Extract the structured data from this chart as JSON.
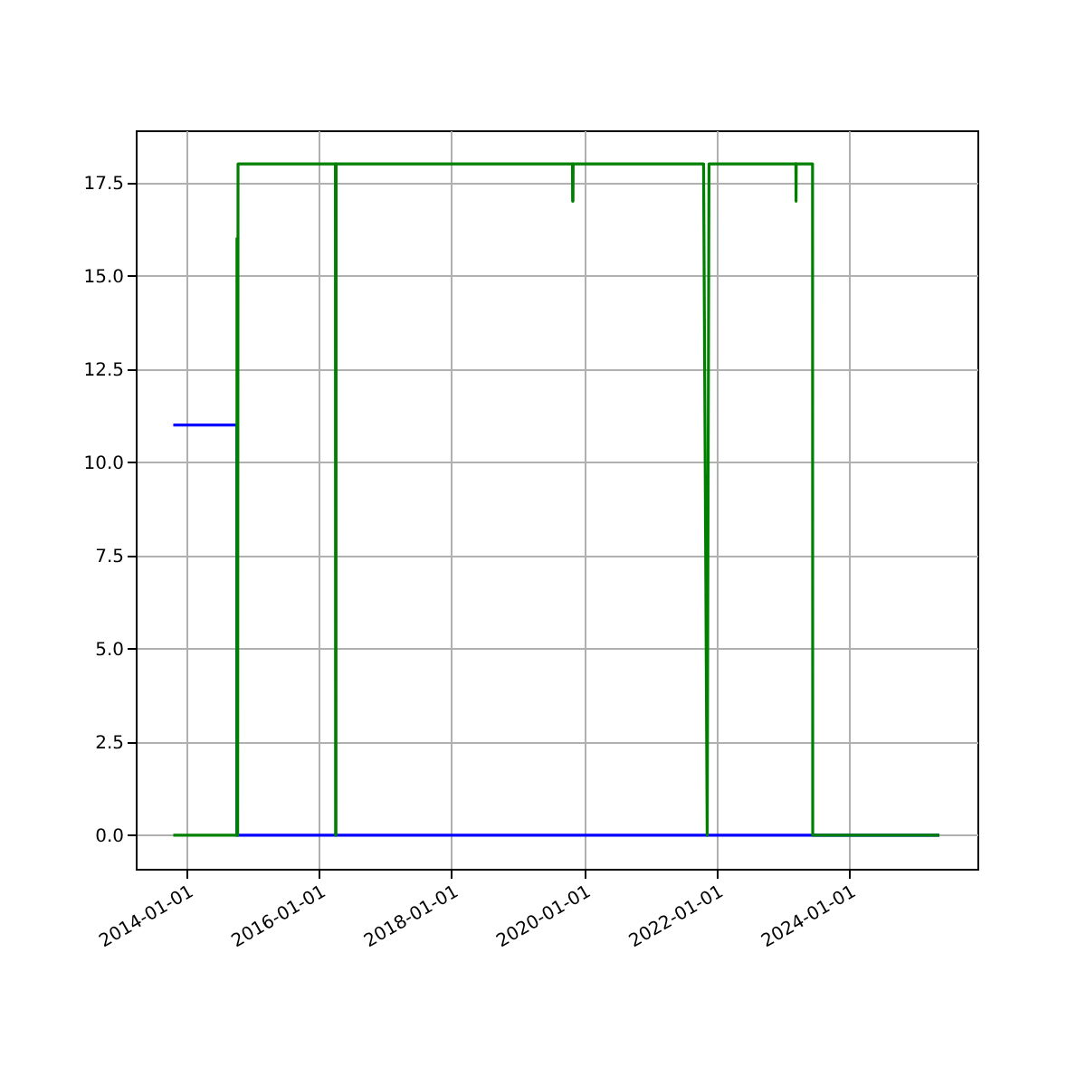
{
  "chart_data": {
    "type": "line",
    "xlim": [
      "2013-03-27",
      "2025-12-10"
    ],
    "xticks": [
      "2014-01-01",
      "2016-01-01",
      "2018-01-01",
      "2020-01-01",
      "2022-01-01",
      "2024-01-01"
    ],
    "ylim": [
      -0.9,
      18.9
    ],
    "yticks": [
      {
        "value": 0,
        "label": "0.0"
      },
      {
        "value": 2.5,
        "label": "2.5"
      },
      {
        "value": 5,
        "label": "5.0"
      },
      {
        "value": 7.5,
        "label": "7.5"
      },
      {
        "value": 10,
        "label": "10.0"
      },
      {
        "value": 12.5,
        "label": "12.5"
      },
      {
        "value": 15,
        "label": "15.0"
      },
      {
        "value": 17.5,
        "label": "17.5"
      }
    ],
    "grid": true,
    "series": [
      {
        "color": "#0000ff",
        "x": [
          "2013-10-20",
          "2014-10-06",
          "2014-10-06",
          "2025-05-14"
        ],
        "values": [
          11,
          11,
          0,
          0
        ]
      },
      {
        "color": "#008000",
        "x": [
          "2013-10-20",
          "2014-10-06",
          "2014-10-06",
          "2014-10-08",
          "2014-10-10",
          "2014-10-12",
          "2016-04-01",
          "2016-04-02",
          "2016-04-04",
          "2016-04-05",
          "2019-10-30",
          "2019-10-31",
          "2019-11-02",
          "2019-11-03",
          "2021-10-22",
          "2021-11-11",
          "2021-11-21",
          "2023-03-15",
          "2023-03-16",
          "2023-03-17",
          "2023-06-15",
          "2023-06-16",
          "2025-05-14"
        ],
        "values": [
          0,
          0,
          16,
          0,
          0,
          18,
          18,
          0,
          0,
          18,
          18,
          17,
          17,
          18,
          18,
          0,
          18,
          18,
          17,
          18,
          18,
          0,
          0
        ]
      }
    ]
  }
}
